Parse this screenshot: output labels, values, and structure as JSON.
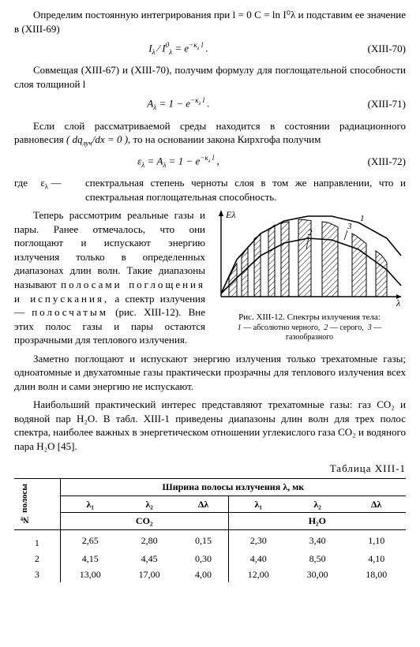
{
  "para1": "Определим постоянную интегрирования при l = 0  C = ln I⁰λ и подставим ее значение в (XIII-69)",
  "eq70": "Iλ / I⁰λ = e^{−κλ l} .",
  "eq70num": "(XIII-70)",
  "para2": "Совмещая (XIII-67) и (XIII-70), получим формулу для поглощательной способности слоя толщиной l",
  "eq71": "Aλ = 1 − e^{−κλ l} .",
  "eq71num": "(XIII-71)",
  "para3a": "Если слой рассматриваемой среды находится в состоянии радиационного равновесия ",
  "para3paren": "( dqлуч / dx = 0 )",
  "para3b": ", то на основании закона Кирхгофа получим",
  "eq72": "ελ = Aλ = 1 − e^{−κλ l} ,",
  "eq72num": "(XIII-72)",
  "def_gde": "где",
  "def_sym": "ελ —",
  "def_text": "спектральная степень черноты слоя в том же направлении, что и спектральная поглощательная способность.",
  "col_para": "Теперь рассмотрим реальные газы и пары. Ранее отмечалось, что они поглощают и испускают энергию излучения только в определенных диапазонах длин волн. Такие диапазоны называют",
  "col_para_sp1": "полосами поглощения и испускания,",
  "col_para_mid": "а спектр излучения —",
  "col_para_sp2": "полосчатым",
  "col_para_end": " (рис. XIII-12). Вне этих полос газы и пары остаются прозрачными для теплового излучения.",
  "fig": {
    "ylabel": "Eλ",
    "xlabel": "λ",
    "curve_labels": [
      "1",
      "2",
      "3"
    ],
    "curves": {
      "1": [
        [
          10,
          108
        ],
        [
          30,
          65
        ],
        [
          60,
          32
        ],
        [
          90,
          16
        ],
        [
          120,
          10
        ],
        [
          150,
          10
        ],
        [
          184,
          18
        ],
        [
          220,
          38
        ],
        [
          238,
          60
        ]
      ],
      "2": [
        [
          10,
          108
        ],
        [
          30,
          88
        ],
        [
          60,
          60
        ],
        [
          90,
          44
        ],
        [
          120,
          38
        ],
        [
          150,
          40
        ],
        [
          184,
          52
        ],
        [
          220,
          78
        ],
        [
          238,
          98
        ]
      ],
      "3": [
        [
          10,
          108
        ],
        [
          26,
          76
        ],
        [
          50,
          40
        ],
        [
          80,
          20
        ],
        [
          110,
          14
        ],
        [
          146,
          18
        ],
        [
          180,
          34
        ],
        [
          214,
          60
        ],
        [
          236,
          92
        ]
      ]
    },
    "hatch_bands_x": [
      [
        20,
        30
      ],
      [
        36,
        44
      ],
      [
        52,
        60
      ],
      [
        70,
        78
      ],
      [
        86,
        96
      ],
      [
        108,
        124
      ],
      [
        138,
        158
      ],
      [
        176,
        194
      ],
      [
        206,
        220
      ]
    ],
    "colors": {
      "stroke": "#000000",
      "bg": "#ffffff"
    },
    "line_width": 1.6
  },
  "fig_caption": "Рис. XIII-12. Спектры излучения тела:",
  "fig_legend": "1 — абсолютно черного, 2 — серого, 3 — газообразного",
  "para5": "Заметно поглощают и испускают энергию излучения только трехатомные газы; одноатомные и двухатомные газы практически прозрачны для теплового излучения всех длин волн и сами энергию не испускают.",
  "para6": "Наибольший практический интерес представляют трехатомные газы: газ CO₂ и водяной пар H₂O. В табл. XIII-1 приведены диапазоны длин волн для трех полос спектра, наиболее важных в энергетическом отношении углекислого газа CO₂ и водяного пара H₂O [45].",
  "table_title": "Таблица XIII-1",
  "table": {
    "rowhead": "№ полосы",
    "spanhead": "Ширина полосы излучения λ, мк",
    "subheads": [
      "λ₁",
      "λ₂",
      "Δλ",
      "λ₁",
      "λ₂",
      "Δλ"
    ],
    "gashead": [
      "CO₂",
      "H₂O"
    ],
    "rows": [
      [
        "1",
        "2,65",
        "2,80",
        "0,15",
        "2,30",
        "3,40",
        "1,10"
      ],
      [
        "2",
        "4,15",
        "4,45",
        "0,30",
        "4,40",
        "8,50",
        "4,10"
      ],
      [
        "3",
        "13,00",
        "17,00",
        "4,00",
        "12,00",
        "30,00",
        "18,00"
      ]
    ]
  }
}
